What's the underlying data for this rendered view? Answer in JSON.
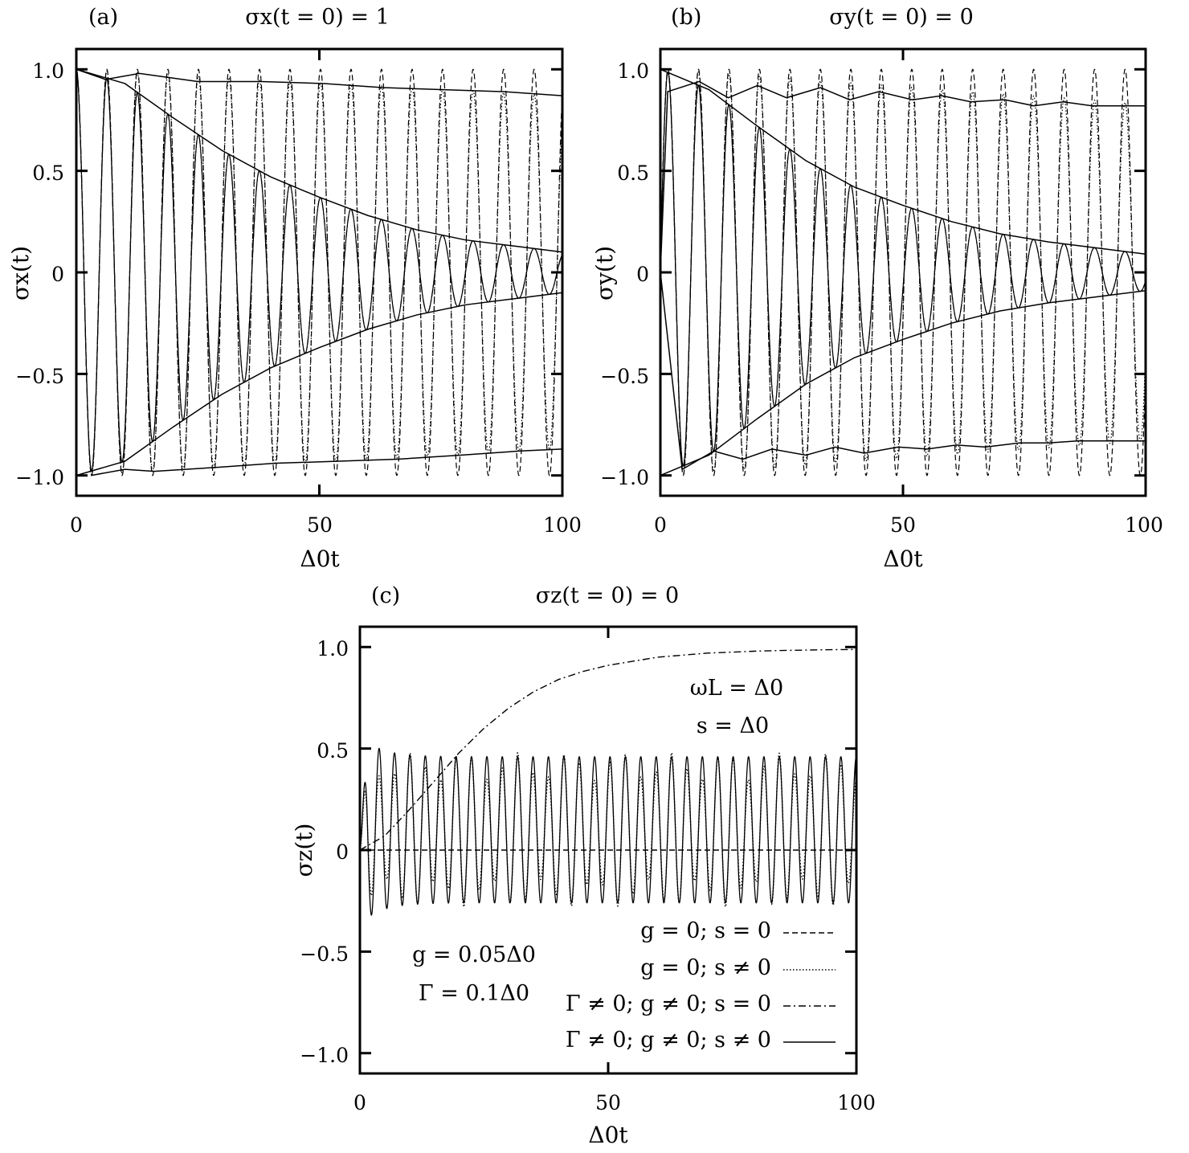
{
  "chart_data": [
    {
      "type": "line",
      "panel_label": "(a)",
      "title": "σx(t = 0) = 1",
      "xlabel": "Δ0t",
      "ylabel": "σx(t)",
      "xlim": [
        0,
        100
      ],
      "ylim": [
        -1.1,
        1.1
      ],
      "xticks": [
        0,
        50,
        100
      ],
      "xtick_labels": [
        "0",
        "50",
        "100"
      ],
      "yticks": [
        -1.0,
        -0.5,
        0,
        0.5,
        1.0
      ],
      "ytick_labels": [
        "−1.0",
        "−0.5",
        "0",
        "0.5",
        "1.0"
      ],
      "grid": false,
      "oscillation_period": 6.28,
      "series": [
        {
          "style": "dashed",
          "x": [
            0,
            100
          ],
          "y_upper": [
            1.0,
            1.0
          ],
          "y_lower": [
            -1.0,
            -1.0
          ]
        },
        {
          "style": "dotted",
          "x": [
            0,
            100
          ],
          "y_upper": [
            1.0,
            0.87
          ],
          "y_lower": [
            -1.0,
            -0.87
          ]
        },
        {
          "style": "dash-dot",
          "x": [
            0,
            10,
            20,
            30,
            40,
            50,
            60,
            70,
            80,
            90,
            100
          ],
          "y_upper": [
            1.0,
            0.93,
            0.76,
            0.6,
            0.47,
            0.37,
            0.28,
            0.21,
            0.16,
            0.13,
            0.1
          ],
          "y_lower": [
            -1.0,
            -0.93,
            -0.76,
            -0.6,
            -0.47,
            -0.37,
            -0.28,
            -0.21,
            -0.16,
            -0.13,
            -0.1
          ]
        },
        {
          "style": "solid",
          "x": [
            0,
            10,
            20,
            30,
            40,
            50,
            60,
            70,
            80,
            90,
            100
          ],
          "y_upper": [
            1.0,
            0.93,
            0.76,
            0.6,
            0.47,
            0.37,
            0.28,
            0.21,
            0.16,
            0.13,
            0.1
          ],
          "y_lower": [
            -1.0,
            -0.93,
            -0.76,
            -0.6,
            -0.47,
            -0.37,
            -0.28,
            -0.21,
            -0.16,
            -0.13,
            -0.1
          ]
        }
      ],
      "envelopes": [
        {
          "x": [
            0,
            6,
            13,
            25,
            38,
            51,
            63,
            75,
            88,
            100
          ],
          "y": [
            1.0,
            0.95,
            0.98,
            0.94,
            0.94,
            0.93,
            0.91,
            0.9,
            0.89,
            0.87
          ]
        },
        {
          "x": [
            3,
            10,
            16,
            29,
            41,
            54,
            66,
            79,
            91,
            100
          ],
          "y": [
            -1.0,
            -0.97,
            -0.98,
            -0.96,
            -0.94,
            -0.93,
            -0.92,
            -0.9,
            -0.88,
            -0.87
          ]
        },
        {
          "x": [
            0,
            10,
            20,
            30,
            40,
            50,
            60,
            70,
            80,
            90,
            100
          ],
          "y": [
            1.0,
            0.93,
            0.76,
            0.6,
            0.47,
            0.37,
            0.28,
            0.21,
            0.16,
            0.13,
            0.1
          ]
        },
        {
          "x": [
            0,
            10,
            20,
            30,
            40,
            50,
            60,
            70,
            80,
            90,
            100
          ],
          "y": [
            -1.0,
            -0.93,
            -0.76,
            -0.6,
            -0.47,
            -0.37,
            -0.28,
            -0.21,
            -0.16,
            -0.13,
            -0.1
          ]
        }
      ]
    },
    {
      "type": "line",
      "panel_label": "(b)",
      "title": "σy(t = 0) = 0",
      "xlabel": "Δ0t",
      "ylabel": "σy(t)",
      "xlim": [
        0,
        100
      ],
      "ylim": [
        -1.1,
        1.1
      ],
      "xticks": [
        0,
        50,
        100
      ],
      "xtick_labels": [
        "0",
        "50",
        "100"
      ],
      "yticks": [
        -1.0,
        -0.5,
        0,
        0.5,
        1.0
      ],
      "ytick_labels": [
        "−1.0",
        "−0.5",
        "0",
        "0.5",
        "1.0"
      ],
      "grid": false,
      "oscillation_period": 6.28,
      "series": [
        {
          "style": "dashed",
          "x": [
            0,
            100
          ],
          "y_upper": [
            1.0,
            1.0
          ],
          "y_lower": [
            -1.0,
            -1.0
          ]
        },
        {
          "style": "dotted",
          "x": [
            0,
            100
          ],
          "y_upper": [
            1.0,
            0.83
          ],
          "y_lower": [
            -1.0,
            -0.83
          ]
        },
        {
          "style": "dash-dot",
          "x": [
            0,
            10,
            20,
            30,
            40,
            50,
            60,
            70,
            80,
            90,
            100
          ],
          "y_upper": [
            1.0,
            0.9,
            0.72,
            0.55,
            0.42,
            0.33,
            0.25,
            0.19,
            0.15,
            0.12,
            0.09
          ],
          "y_lower": [
            -1.0,
            -0.9,
            -0.72,
            -0.55,
            -0.42,
            -0.33,
            -0.25,
            -0.19,
            -0.15,
            -0.12,
            -0.09
          ]
        },
        {
          "style": "solid",
          "x": [
            0,
            10,
            20,
            30,
            40,
            50,
            60,
            70,
            80,
            90,
            100
          ],
          "y_upper": [
            1.0,
            0.9,
            0.72,
            0.55,
            0.42,
            0.33,
            0.25,
            0.19,
            0.15,
            0.12,
            0.09
          ],
          "y_lower": [
            -1.0,
            -0.9,
            -0.72,
            -0.55,
            -0.42,
            -0.33,
            -0.25,
            -0.19,
            -0.15,
            -0.12,
            -0.09
          ]
        }
      ],
      "envelopes": [
        {
          "x": [
            0,
            1.5,
            8,
            14,
            20,
            26,
            33,
            39,
            45,
            52,
            58,
            64,
            71,
            77,
            83,
            89,
            95,
            100
          ],
          "y": [
            0.0,
            0.89,
            0.94,
            0.86,
            0.92,
            0.86,
            0.91,
            0.85,
            0.89,
            0.85,
            0.87,
            0.84,
            0.85,
            0.82,
            0.84,
            0.82,
            0.82,
            0.82
          ]
        },
        {
          "x": [
            0,
            4.5,
            11,
            17,
            23,
            30,
            36,
            42,
            49,
            55,
            61,
            67,
            74,
            80,
            86,
            92,
            98,
            100
          ],
          "y": [
            0.0,
            -0.97,
            -0.88,
            -0.92,
            -0.87,
            -0.9,
            -0.86,
            -0.89,
            -0.86,
            -0.87,
            -0.85,
            -0.86,
            -0.84,
            -0.84,
            -0.83,
            -0.83,
            -0.83,
            -0.83
          ]
        },
        {
          "x": [
            0,
            10,
            20,
            30,
            40,
            50,
            60,
            70,
            80,
            90,
            100
          ],
          "y": [
            1.0,
            0.9,
            0.72,
            0.55,
            0.42,
            0.33,
            0.25,
            0.19,
            0.15,
            0.12,
            0.09
          ]
        },
        {
          "x": [
            0,
            10,
            20,
            30,
            40,
            50,
            60,
            70,
            80,
            90,
            100
          ],
          "y": [
            -1.0,
            -0.9,
            -0.72,
            -0.55,
            -0.42,
            -0.33,
            -0.25,
            -0.19,
            -0.15,
            -0.12,
            -0.09
          ]
        }
      ]
    },
    {
      "type": "line",
      "panel_label": "(c)",
      "title": "σz(t = 0) = 0",
      "xlabel": "Δ0t",
      "ylabel": "σz(t)",
      "xlim": [
        0,
        100
      ],
      "ylim": [
        -1.1,
        1.1
      ],
      "xticks": [
        0,
        50,
        100
      ],
      "xtick_labels": [
        "0",
        "50",
        "100"
      ],
      "yticks": [
        -1.0,
        -0.5,
        0,
        0.5,
        1.0
      ],
      "ytick_labels": [
        "−1.0",
        "−0.5",
        "0",
        "0.5",
        "1.0"
      ],
      "grid": false,
      "legend_position": "bottom-right",
      "annotations": {
        "top_right": [
          "ωL = Δ0",
          "s = Δ0"
        ],
        "bottom_left": [
          "g = 0.05Δ0",
          "Γ = 0.1Δ0"
        ]
      },
      "series": [
        {
          "name": "g = 0; s = 0",
          "style": "dashed",
          "x": [
            0,
            100
          ],
          "y": [
            0,
            0
          ]
        },
        {
          "name": "g = 0; s ≠ 0",
          "style": "dotted",
          "oscillation_period": 3.1,
          "offset": 0.1,
          "amplitude": 0.38,
          "beat_period": 10.5
        },
        {
          "name": "Γ ≠ 0; g ≠ 0; s = 0",
          "style": "dash-dot",
          "x": [
            0,
            5,
            10,
            15,
            20,
            25,
            30,
            35,
            40,
            45,
            50,
            55,
            60,
            65,
            70,
            75,
            80,
            85,
            90,
            95,
            100
          ],
          "y": [
            0.0,
            0.07,
            0.2,
            0.34,
            0.48,
            0.6,
            0.7,
            0.78,
            0.84,
            0.88,
            0.91,
            0.93,
            0.95,
            0.96,
            0.97,
            0.975,
            0.98,
            0.983,
            0.985,
            0.987,
            0.988
          ]
        },
        {
          "name": "Γ ≠ 0; g ≠ 0; s ≠ 0",
          "style": "solid",
          "oscillation_period": 3.1,
          "offset": 0.1,
          "amplitude": 0.36,
          "first_peak": 0.47
        }
      ]
    }
  ]
}
